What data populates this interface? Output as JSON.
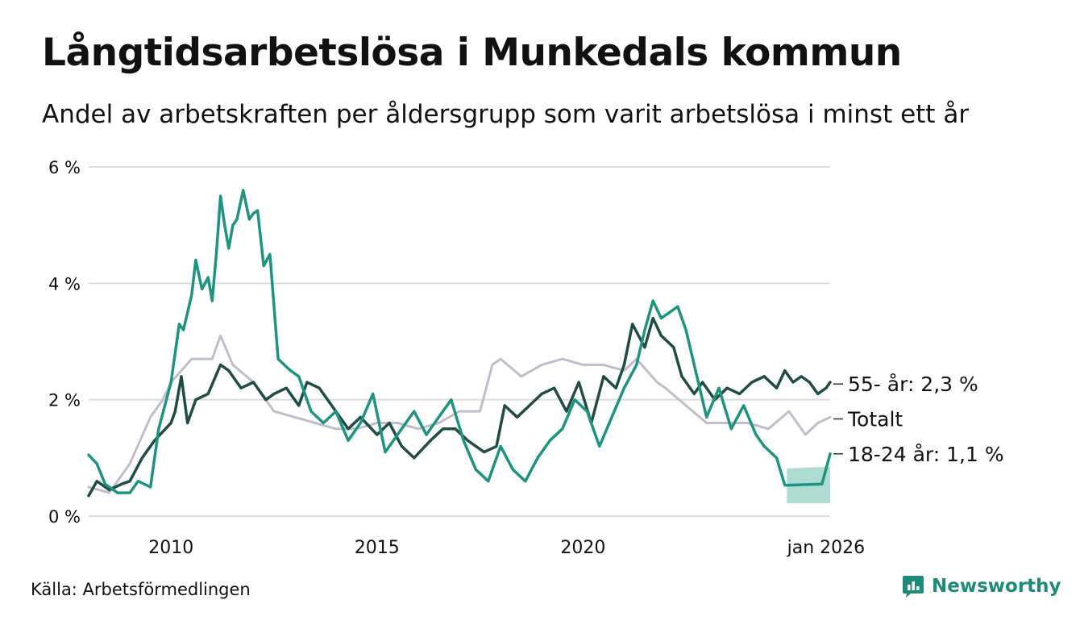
{
  "title": "Långtidsarbetslösa i Munkedals kommun",
  "subtitle": "Andel av arbetskraften per åldersgrupp som varit arbetslösa i minst ett år",
  "source": "Källa: Arbetsförmedlingen",
  "brand": "Newsworthy",
  "colors": {
    "age_55": "#1f4d45",
    "total": "#c2bccb",
    "age_18_24": "#1d9480",
    "band": "#a7d7ce",
    "grid": "#dcdcdc",
    "brand": "#1f8a78"
  },
  "chart_data": {
    "type": "line",
    "xlim": [
      2008.0,
      2026.0
    ],
    "ylim": [
      0,
      6
    ],
    "yticks": [
      0,
      2,
      4,
      6
    ],
    "ytick_labels": [
      "0 %",
      "2 %",
      "4 %",
      "6 %"
    ],
    "xticks": [
      2010,
      2015,
      2020,
      2025.9
    ],
    "xtick_labels": [
      "2010",
      "2015",
      "2020",
      "jan 2026"
    ],
    "band_18_24": {
      "x": [
        2024.95,
        2026.0
      ],
      "lower": [
        0.22,
        0.22
      ],
      "upper": [
        0.82,
        0.85
      ]
    },
    "series": [
      {
        "key": "total",
        "name": "Totalt",
        "end_label": "Totalt",
        "label_y": 1.67,
        "x": [
          2008.0,
          2008.5,
          2009.0,
          2009.5,
          2009.8,
          2010.0,
          2010.5,
          2011.0,
          2011.2,
          2011.5,
          2012.0,
          2012.5,
          2013.0,
          2013.5,
          2014.0,
          2014.5,
          2015.0,
          2015.5,
          2016.0,
          2016.5,
          2017.0,
          2017.5,
          2017.8,
          2018.0,
          2018.5,
          2019.0,
          2019.5,
          2020.0,
          2020.5,
          2021.0,
          2021.3,
          2021.8,
          2022.0,
          2022.5,
          2023.0,
          2023.5,
          2024.0,
          2024.5,
          2025.0,
          2025.4,
          2025.7,
          2026.0
        ],
        "y": [
          0.5,
          0.4,
          0.9,
          1.7,
          2.0,
          2.3,
          2.7,
          2.7,
          3.1,
          2.6,
          2.3,
          1.8,
          1.7,
          1.6,
          1.5,
          1.5,
          1.6,
          1.6,
          1.5,
          1.6,
          1.8,
          1.8,
          2.6,
          2.7,
          2.4,
          2.6,
          2.7,
          2.6,
          2.6,
          2.5,
          2.7,
          2.3,
          2.2,
          1.9,
          1.6,
          1.6,
          1.6,
          1.5,
          1.8,
          1.4,
          1.6,
          1.7
        ]
      },
      {
        "key": "age_55",
        "name": "55- år",
        "end_label": "55- år: 2,3 %",
        "label_y": 2.27,
        "x": [
          2008.0,
          2008.2,
          2008.5,
          2008.8,
          2009.0,
          2009.3,
          2009.6,
          2010.0,
          2010.1,
          2010.25,
          2010.4,
          2010.6,
          2010.9,
          2011.2,
          2011.4,
          2011.7,
          2012.0,
          2012.3,
          2012.5,
          2012.8,
          2013.1,
          2013.3,
          2013.6,
          2014.0,
          2014.3,
          2014.6,
          2015.0,
          2015.3,
          2015.6,
          2015.9,
          2016.3,
          2016.6,
          2016.9,
          2017.2,
          2017.6,
          2017.9,
          2018.1,
          2018.4,
          2018.7,
          2019.0,
          2019.3,
          2019.6,
          2019.9,
          2020.2,
          2020.5,
          2020.8,
          2021.0,
          2021.2,
          2021.5,
          2021.7,
          2021.9,
          2022.2,
          2022.4,
          2022.7,
          2022.9,
          2023.2,
          2023.5,
          2023.8,
          2024.1,
          2024.4,
          2024.7,
          2024.9,
          2025.1,
          2025.3,
          2025.5,
          2025.7,
          2025.9,
          2026.0
        ],
        "y": [
          0.35,
          0.6,
          0.45,
          0.55,
          0.6,
          1.0,
          1.3,
          1.6,
          1.8,
          2.4,
          1.6,
          2.0,
          2.1,
          2.6,
          2.5,
          2.2,
          2.3,
          2.0,
          2.1,
          2.2,
          1.9,
          2.3,
          2.2,
          1.8,
          1.5,
          1.7,
          1.4,
          1.6,
          1.2,
          1.0,
          1.3,
          1.5,
          1.5,
          1.3,
          1.1,
          1.2,
          1.9,
          1.7,
          1.9,
          2.1,
          2.2,
          1.8,
          2.3,
          1.6,
          2.4,
          2.2,
          2.6,
          3.3,
          2.9,
          3.4,
          3.1,
          2.9,
          2.4,
          2.1,
          2.3,
          2.0,
          2.2,
          2.1,
          2.3,
          2.4,
          2.2,
          2.5,
          2.3,
          2.4,
          2.3,
          2.1,
          2.2,
          2.3
        ]
      },
      {
        "key": "age_18_24",
        "name": "18-24 år",
        "end_label": "18-24 år: 1,1 %",
        "label_y": 1.07,
        "x": [
          2008.0,
          2008.2,
          2008.4,
          2008.7,
          2009.0,
          2009.2,
          2009.5,
          2009.7,
          2010.0,
          2010.2,
          2010.3,
          2010.5,
          2010.6,
          2010.75,
          2010.9,
          2011.0,
          2011.1,
          2011.2,
          2011.3,
          2011.4,
          2011.5,
          2011.6,
          2011.75,
          2011.9,
          2012.0,
          2012.1,
          2012.25,
          2012.4,
          2012.6,
          2012.9,
          2013.1,
          2013.4,
          2013.7,
          2014.0,
          2014.3,
          2014.6,
          2014.9,
          2015.2,
          2015.6,
          2015.9,
          2016.2,
          2016.5,
          2016.8,
          2017.1,
          2017.4,
          2017.7,
          2018.0,
          2018.3,
          2018.6,
          2018.9,
          2019.2,
          2019.5,
          2019.8,
          2020.1,
          2020.4,
          2020.7,
          2021.0,
          2021.3,
          2021.5,
          2021.7,
          2021.9,
          2022.1,
          2022.3,
          2022.5,
          2022.8,
          2023.0,
          2023.3,
          2023.6,
          2023.9,
          2024.2,
          2024.4,
          2024.7,
          2024.9,
          2025.8,
          2026.0
        ],
        "y": [
          1.05,
          0.9,
          0.55,
          0.4,
          0.4,
          0.6,
          0.5,
          1.5,
          2.3,
          3.3,
          3.2,
          3.8,
          4.4,
          3.9,
          4.1,
          3.7,
          4.5,
          5.5,
          5.0,
          4.6,
          5.0,
          5.1,
          5.6,
          5.1,
          5.2,
          5.25,
          4.3,
          4.5,
          2.7,
          2.5,
          2.4,
          1.8,
          1.6,
          1.8,
          1.3,
          1.6,
          2.1,
          1.1,
          1.5,
          1.8,
          1.4,
          1.7,
          2.0,
          1.3,
          0.8,
          0.6,
          1.2,
          0.8,
          0.6,
          1.0,
          1.3,
          1.5,
          2.0,
          1.8,
          1.2,
          1.7,
          2.2,
          2.6,
          3.2,
          3.7,
          3.4,
          3.5,
          3.6,
          3.2,
          2.3,
          1.7,
          2.2,
          1.5,
          1.9,
          1.4,
          1.2,
          1.0,
          0.53,
          0.55,
          1.07
        ]
      }
    ]
  }
}
